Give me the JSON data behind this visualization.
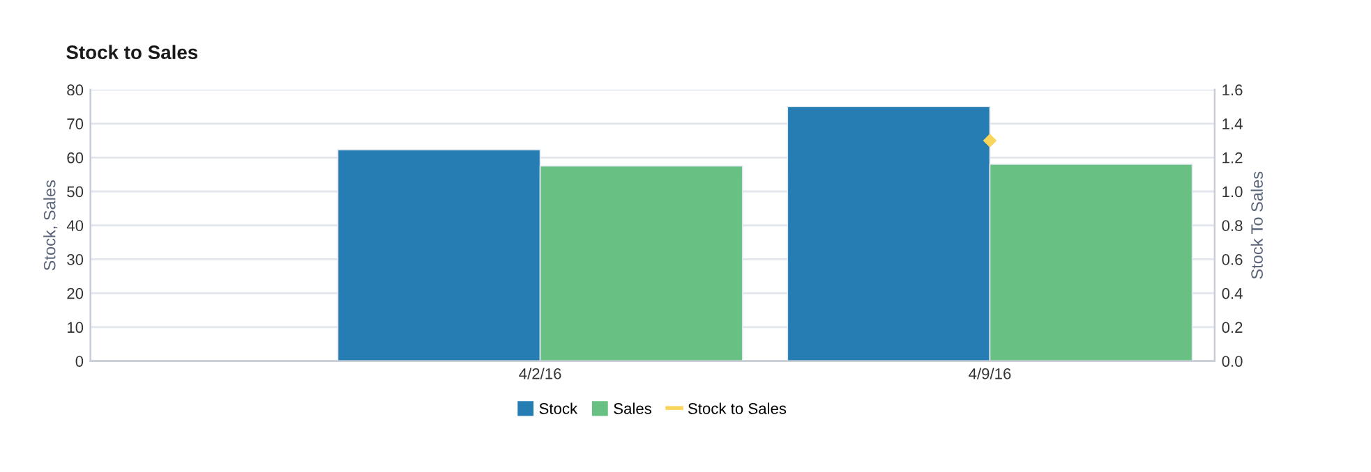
{
  "chart_data": {
    "type": "bar",
    "title": "Stock to Sales",
    "ylabel": "Stock, Sales",
    "y2label": "Stock To Sales",
    "categories": [
      "4/2/16",
      "4/9/16"
    ],
    "series": [
      {
        "name": "Stock",
        "color": "#267db3",
        "values": [
          62.3,
          75
        ]
      },
      {
        "name": "Sales",
        "color": "#68c182",
        "values": [
          57.5,
          58
        ]
      },
      {
        "name": "Stock to Sales",
        "type": "line",
        "axis": "y2",
        "color": "#fad55c",
        "marker": "diamond",
        "values": [
          null,
          1.3
        ]
      }
    ],
    "ylim": [
      0,
      80
    ],
    "yticks": [
      0,
      10,
      20,
      30,
      40,
      50,
      60,
      70,
      80
    ],
    "y2lim": [
      0,
      1.6
    ],
    "y2ticks": [
      {
        "value": 0,
        "label": "0.0"
      },
      {
        "value": 0.2,
        "label": "0.2"
      },
      {
        "value": 0.4,
        "label": "0.4"
      },
      {
        "value": 0.6,
        "label": "0.6"
      },
      {
        "value": 0.8,
        "label": "0.8"
      },
      {
        "value": 1.0,
        "label": "1.0"
      },
      {
        "value": 1.2,
        "label": "1.2"
      },
      {
        "value": 1.4,
        "label": "1.4"
      },
      {
        "value": 1.6,
        "label": "1.6"
      }
    ],
    "grid": "y",
    "legend": "bottom"
  }
}
